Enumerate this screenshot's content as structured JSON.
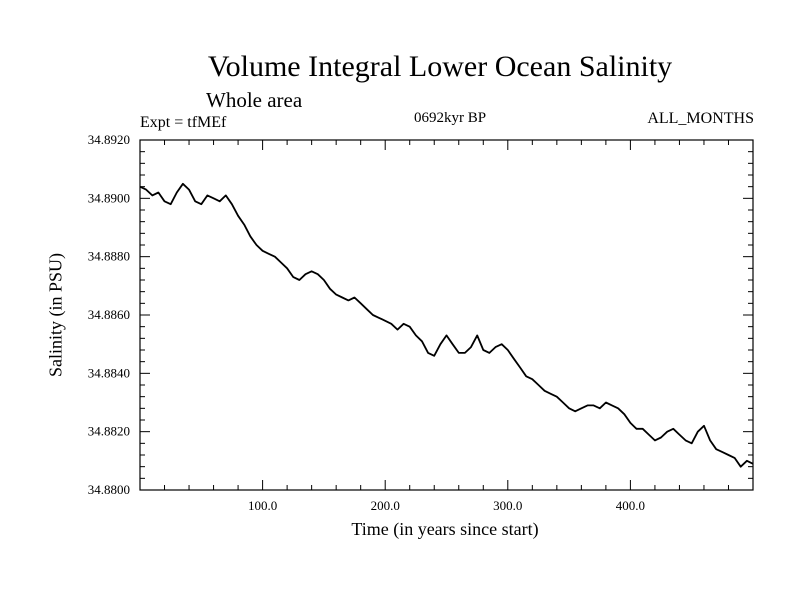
{
  "chart_data": {
    "type": "line",
    "title": "Volume Integral Lower Ocean Salinity",
    "subtitle": "Whole area",
    "experiment_label": "Expt = tfMEf",
    "period_label": "0692kyr BP",
    "months_label": "ALL_MONTHS",
    "xlabel": "Time (in years since start)",
    "ylabel": "Salinity (in PSU)",
    "xlim": [
      0,
      500
    ],
    "ylim": [
      34.88,
      34.892
    ],
    "xticks": [
      {
        "value": 100,
        "label": "100.0"
      },
      {
        "value": 200,
        "label": "200.0"
      },
      {
        "value": 300,
        "label": "300.0"
      },
      {
        "value": 400,
        "label": "400.0"
      }
    ],
    "yticks": [
      {
        "value": 34.88,
        "label": "34.8800"
      },
      {
        "value": 34.882,
        "label": "34.8820"
      },
      {
        "value": 34.884,
        "label": "34.8840"
      },
      {
        "value": 34.886,
        "label": "34.8860"
      },
      {
        "value": 34.888,
        "label": "34.8880"
      },
      {
        "value": 34.89,
        "label": "34.8900"
      },
      {
        "value": 34.892,
        "label": "34.8920"
      }
    ],
    "grid": false,
    "line_color": "#000000",
    "series": [
      {
        "x": [
          0,
          5,
          10,
          15,
          20,
          25,
          30,
          35,
          40,
          45,
          50,
          55,
          60,
          65,
          70,
          75,
          80,
          85,
          90,
          95,
          100,
          105,
          110,
          115,
          120,
          125,
          130,
          135,
          140,
          145,
          150,
          155,
          160,
          165,
          170,
          175,
          180,
          185,
          190,
          195,
          200,
          205,
          210,
          215,
          220,
          225,
          230,
          235,
          240,
          245,
          250,
          255,
          260,
          265,
          270,
          275,
          280,
          285,
          290,
          295,
          300,
          305,
          310,
          315,
          320,
          325,
          330,
          335,
          340,
          345,
          350,
          355,
          360,
          365,
          370,
          375,
          380,
          385,
          390,
          395,
          400,
          405,
          410,
          415,
          420,
          425,
          430,
          435,
          440,
          445,
          450,
          455,
          460,
          465,
          470,
          475,
          480,
          485,
          490,
          495,
          500
        ],
        "values": [
          34.8904,
          34.8903,
          34.8901,
          34.8902,
          34.8899,
          34.8898,
          34.8902,
          34.8905,
          34.8903,
          34.8899,
          34.8898,
          34.8901,
          34.89,
          34.8899,
          34.8901,
          34.8898,
          34.8894,
          34.8891,
          34.8887,
          34.8884,
          34.8882,
          34.8881,
          34.888,
          34.8878,
          34.8876,
          34.8873,
          34.8872,
          34.8874,
          34.8875,
          34.8874,
          34.8872,
          34.8869,
          34.8867,
          34.8866,
          34.8865,
          34.8866,
          34.8864,
          34.8862,
          34.886,
          34.8859,
          34.8858,
          34.8857,
          34.8855,
          34.8857,
          34.8856,
          34.8853,
          34.8851,
          34.8847,
          34.8846,
          34.885,
          34.8853,
          34.885,
          34.8847,
          34.8847,
          34.8849,
          34.8853,
          34.8848,
          34.8847,
          34.8849,
          34.885,
          34.8848,
          34.8845,
          34.8842,
          34.8839,
          34.8838,
          34.8836,
          34.8834,
          34.8833,
          34.8832,
          34.883,
          34.8828,
          34.8827,
          34.8828,
          34.8829,
          34.8829,
          34.8828,
          34.883,
          34.8829,
          34.8828,
          34.8826,
          34.8823,
          34.8821,
          34.8821,
          34.8819,
          34.8817,
          34.8818,
          34.882,
          34.8821,
          34.8819,
          34.8817,
          34.8816,
          34.882,
          34.8822,
          34.8817,
          34.8814,
          34.8813,
          34.8812,
          34.8811,
          34.8808,
          34.881,
          34.8809
        ]
      }
    ]
  }
}
